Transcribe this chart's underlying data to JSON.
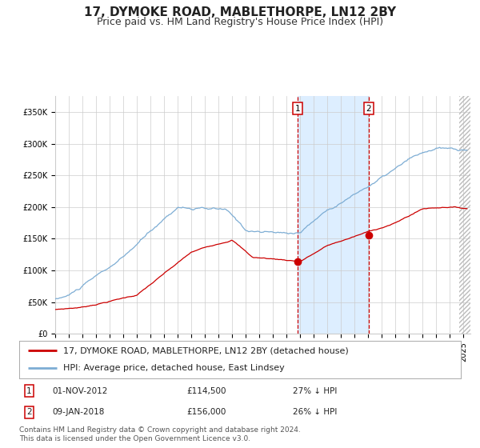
{
  "title": "17, DYMOKE ROAD, MABLETHORPE, LN12 2BY",
  "subtitle": "Price paid vs. HM Land Registry's House Price Index (HPI)",
  "legend_line1": "17, DYMOKE ROAD, MABLETHORPE, LN12 2BY (detached house)",
  "legend_line2": "HPI: Average price, detached house, East Lindsey",
  "annotation1_date": "01-NOV-2012",
  "annotation1_price": "£114,500",
  "annotation1_change": "27% ↓ HPI",
  "annotation2_date": "09-JAN-2018",
  "annotation2_price": "£156,000",
  "annotation2_change": "26% ↓ HPI",
  "purchase1_year": 2012.83,
  "purchase1_value": 114500,
  "purchase2_year": 2018.03,
  "purchase2_value": 156000,
  "hpi_color": "#7dadd4",
  "price_color": "#cc0000",
  "shade_color": "#ddeeff",
  "marker_color": "#cc0000",
  "grid_color": "#cccccc",
  "bg_color": "#ffffff",
  "ylim": [
    0,
    375000
  ],
  "yticks": [
    0,
    50000,
    100000,
    150000,
    200000,
    250000,
    300000,
    350000
  ],
  "ytick_labels": [
    "£0",
    "£50K",
    "£100K",
    "£150K",
    "£200K",
    "£250K",
    "£300K",
    "£350K"
  ],
  "footer": "Contains HM Land Registry data © Crown copyright and database right 2024.\nThis data is licensed under the Open Government Licence v3.0.",
  "title_fontsize": 11,
  "subtitle_fontsize": 9,
  "tick_fontsize": 7,
  "legend_fontsize": 8,
  "footer_fontsize": 6.5
}
